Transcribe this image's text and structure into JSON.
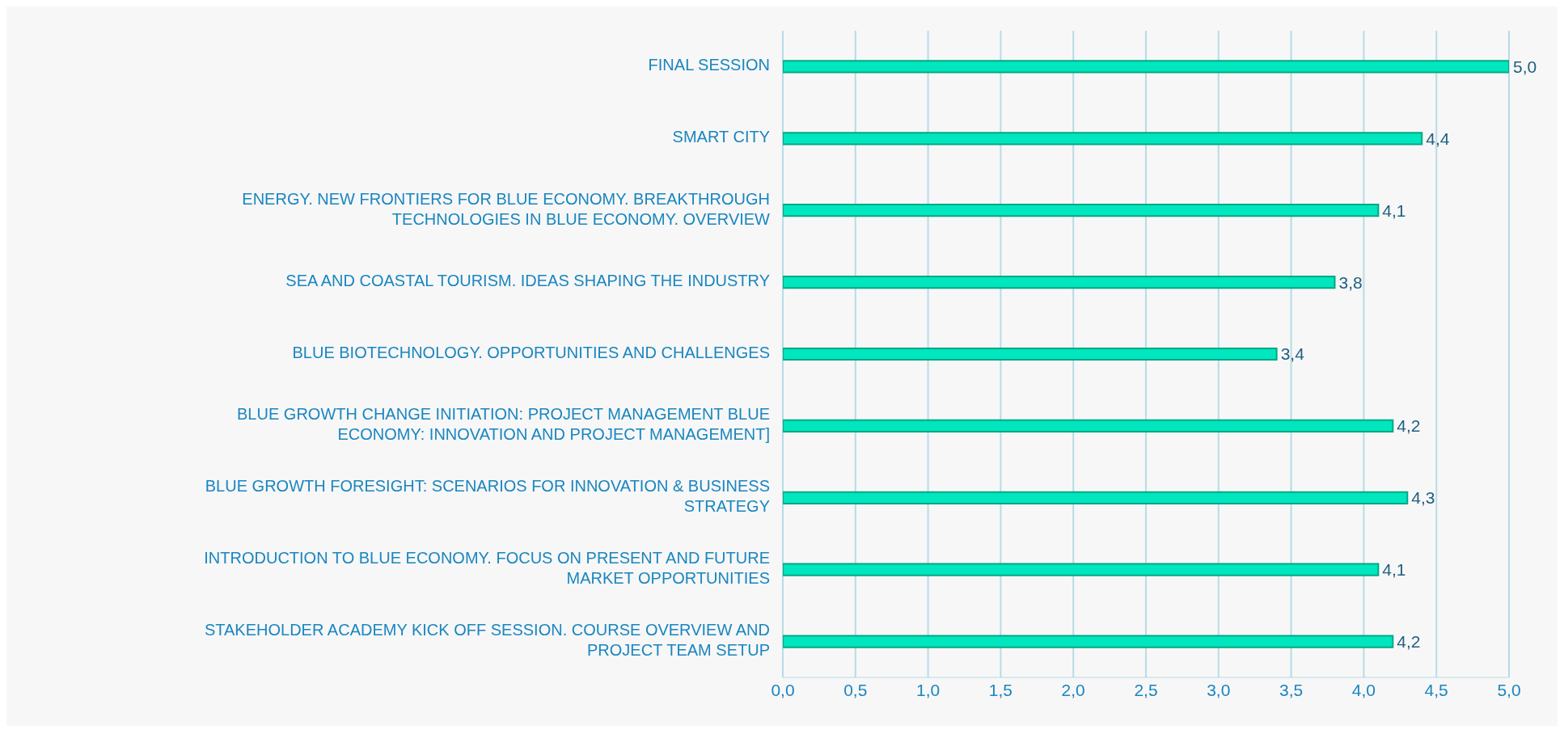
{
  "chart_data": {
    "type": "bar",
    "orientation": "horizontal",
    "categories": [
      "FINAL SESSION",
      "SMART CITY",
      "ENERGY. NEW FRONTIERS FOR BLUE ECONOMY. BREAKTHROUGH TECHNOLOGIES IN BLUE ECONOMY. OVERVIEW",
      "SEA AND COASTAL TOURISM. IDEAS SHAPING THE INDUSTRY",
      "BLUE BIOTECHNOLOGY. OPPORTUNITIES AND CHALLENGES",
      "BLUE GROWTH CHANGE INITIATION: PROJECT MANAGEMENT BLUE ECONOMY: INNOVATION AND PROJECT MANAGEMENT]",
      "BLUE GROWTH FORESIGHT: SCENARIOS FOR INNOVATION & BUSINESS STRATEGY",
      "INTRODUCTION TO BLUE ECONOMY. FOCUS ON PRESENT AND FUTURE MARKET OPPORTUNITIES",
      "STAKEHOLDER ACADEMY KICK OFF SESSION. COURSE OVERVIEW AND PROJECT TEAM SETUP"
    ],
    "values": [
      5.0,
      4.4,
      4.1,
      3.8,
      3.4,
      4.2,
      4.3,
      4.1,
      4.2
    ],
    "value_labels": [
      "5,0",
      "4,4",
      "4,1",
      "3,8",
      "3,4",
      "4,2",
      "4,3",
      "4,1",
      "4,2"
    ],
    "color": "#00e6be",
    "xlim": [
      0,
      5
    ],
    "xticks": [
      {
        "value": 0,
        "label": "0,0"
      },
      {
        "value": 0.5,
        "label": "0,5"
      },
      {
        "value": 1,
        "label": "1,0"
      },
      {
        "value": 1.5,
        "label": "1,5"
      },
      {
        "value": 2,
        "label": "2,0"
      },
      {
        "value": 2.5,
        "label": "2,5"
      },
      {
        "value": 3,
        "label": "3,0"
      },
      {
        "value": 3.5,
        "label": "3,5"
      },
      {
        "value": 4,
        "label": "4,0"
      },
      {
        "value": 4.5,
        "label": "4,5"
      },
      {
        "value": 5,
        "label": "5,0"
      }
    ],
    "grid": "x"
  }
}
